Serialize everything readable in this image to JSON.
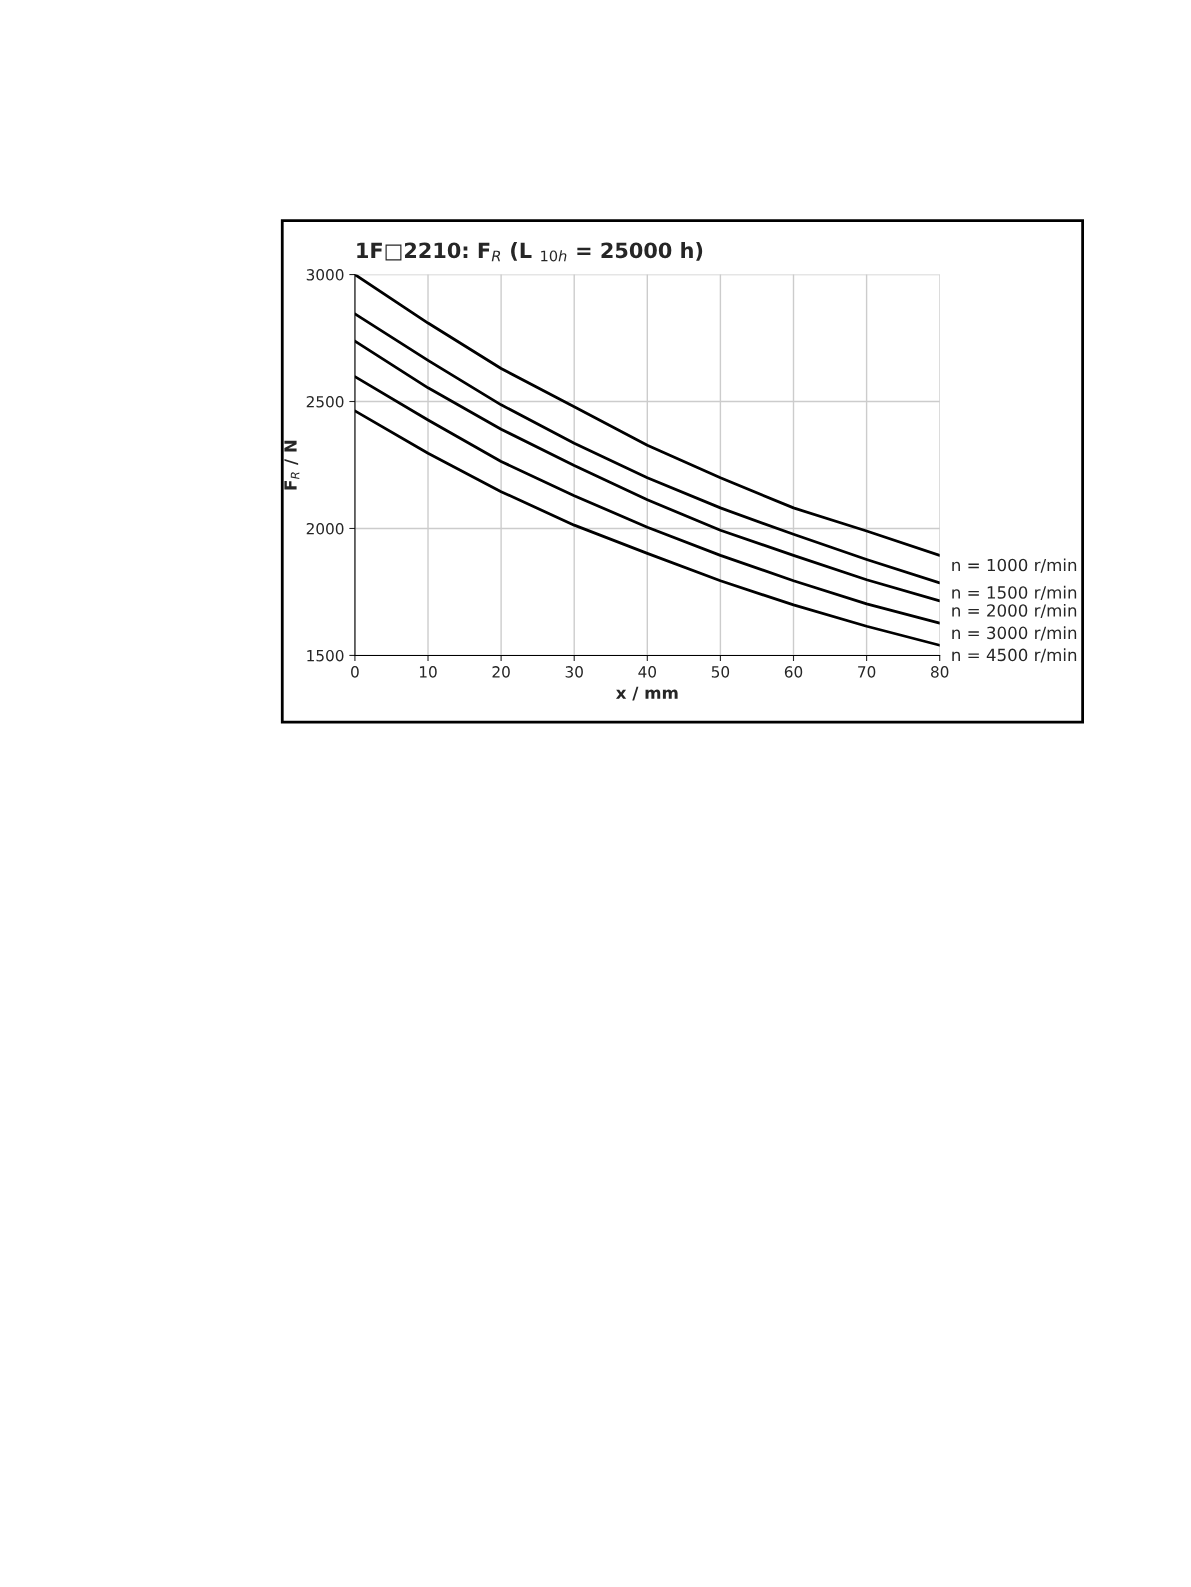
{
  "chart_data": {
    "type": "line",
    "title": "1F□2210: F$_{R}$ (L $_{10h}$ = 25000 h)",
    "xlabel": "x / mm",
    "ylabel": "F$_{R}$ / N",
    "x": [
      0,
      10,
      20,
      30,
      40,
      50,
      60,
      70,
      80
    ],
    "series": [
      {
        "name": "n = 1000 r/min",
        "color": "#000000",
        "values": [
          3000,
          2809,
          2630,
          2479,
          2328,
          2200,
          2081,
          1990,
          1894
        ]
      },
      {
        "name": "n = 1500 r/min",
        "color": "#000000",
        "values": [
          2845,
          2662,
          2487,
          2336,
          2200,
          2081,
          1977,
          1878,
          1786
        ]
      },
      {
        "name": "n = 2000 r/min",
        "color": "#000000",
        "values": [
          2738,
          2554,
          2391,
          2248,
          2113,
          1993,
          1894,
          1798,
          1715
        ]
      },
      {
        "name": "n = 3000 r/min",
        "color": "#000000",
        "values": [
          2598,
          2427,
          2264,
          2129,
          2005,
          1894,
          1794,
          1703,
          1627
        ]
      },
      {
        "name": "n = 4500 r/min",
        "color": "#000000",
        "values": [
          2463,
          2296,
          2145,
          2013,
          1902,
          1794,
          1699,
          1615,
          1540
        ]
      }
    ],
    "xlim": [
      0,
      80
    ],
    "xticks": [
      0,
      10,
      20,
      30,
      40,
      50,
      60,
      70,
      80
    ],
    "ylim": [
      1500,
      3000
    ],
    "yticks": [
      1500,
      2000,
      2500,
      3000
    ],
    "grid": true,
    "legend": false,
    "marker": "none",
    "line_style": "solid"
  }
}
